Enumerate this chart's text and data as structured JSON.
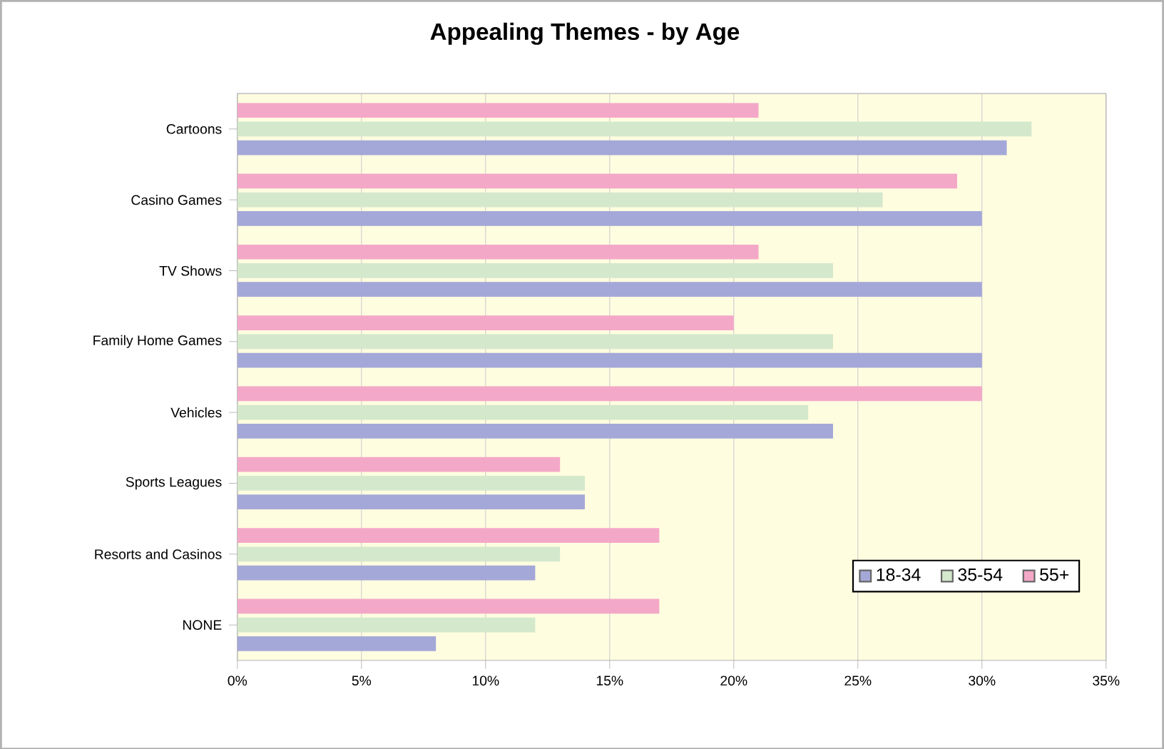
{
  "chart_data": {
    "type": "bar",
    "orientation": "horizontal",
    "title": "Appealing Themes - by Age",
    "categories": [
      "Cartoons",
      "Casino Games",
      "TV Shows",
      "Family Home Games",
      "Vehicles",
      "Sports Leagues",
      "Resorts and Casinos",
      "NONE"
    ],
    "series": [
      {
        "name": "18-34",
        "color": "#a4a8d8",
        "values": [
          31,
          30,
          30,
          30,
          24,
          14,
          12,
          8
        ]
      },
      {
        "name": "35-54",
        "color": "#d4e8cc",
        "values": [
          32,
          26,
          24,
          24,
          23,
          14,
          13,
          12
        ]
      },
      {
        "name": "55+",
        "color": "#f4a8c8",
        "values": [
          21,
          29,
          21,
          20,
          30,
          13,
          17,
          17
        ]
      }
    ],
    "xlim": [
      0,
      35
    ],
    "xticks": [
      {
        "value": 0,
        "label": "0%"
      },
      {
        "value": 5,
        "label": "5%"
      },
      {
        "value": 10,
        "label": "10%"
      },
      {
        "value": 15,
        "label": "15%"
      },
      {
        "value": 20,
        "label": "20%"
      },
      {
        "value": 25,
        "label": "25%"
      },
      {
        "value": 30,
        "label": "30%"
      },
      {
        "value": 35,
        "label": "35%"
      }
    ],
    "grid": "x",
    "legend": "bottom right"
  }
}
